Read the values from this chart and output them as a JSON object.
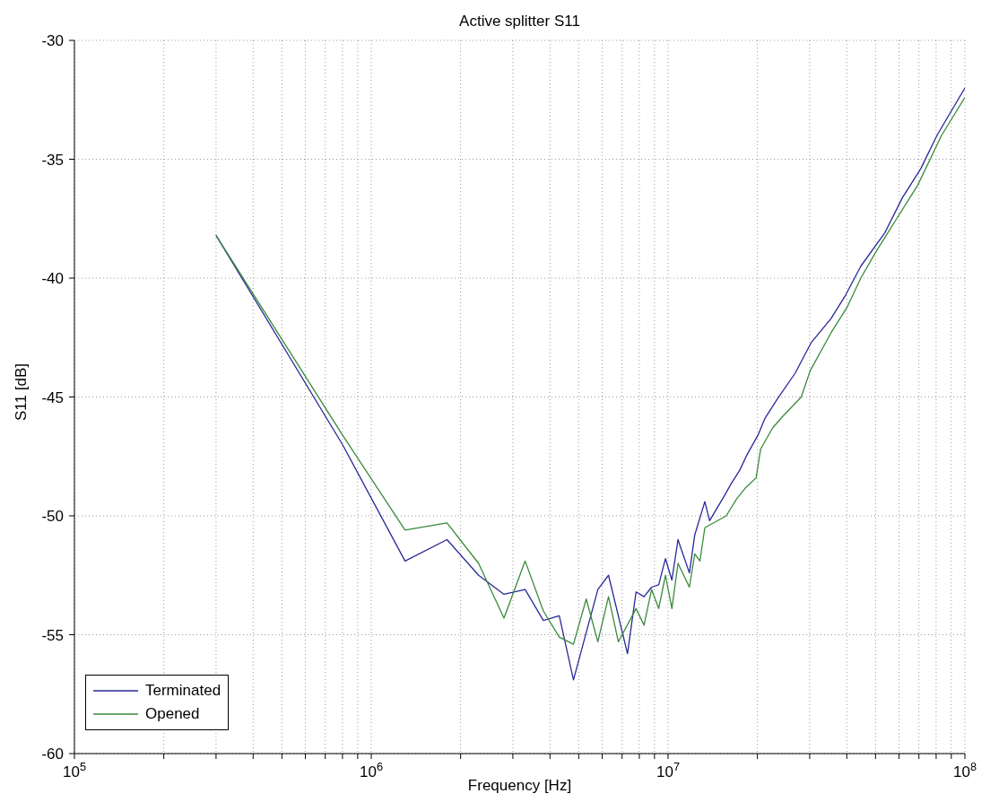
{
  "chart_data": {
    "type": "line",
    "title": "Active splitter S11",
    "xlabel": "Frequency [Hz]",
    "ylabel": "S11 [dB]",
    "log": "x",
    "grid": true,
    "legend": "bottom left",
    "line_style": "solid",
    "marker": "none",
    "xlim": [
      100000,
      100000000
    ],
    "xticks": [
      {
        "value": 100000,
        "label": "10$^{5}$"
      },
      {
        "value": 200000,
        "label": null
      },
      {
        "value": 300000,
        "label": null
      },
      {
        "value": 400000,
        "label": null
      },
      {
        "value": 500000,
        "label": null
      },
      {
        "value": 600000,
        "label": null
      },
      {
        "value": 700000,
        "label": null
      },
      {
        "value": 800000,
        "label": null
      },
      {
        "value": 900000,
        "label": null
      },
      {
        "value": 1000000,
        "label": "10$^{6}$"
      },
      {
        "value": 2000000,
        "label": null
      },
      {
        "value": 3000000,
        "label": null
      },
      {
        "value": 4000000,
        "label": null
      },
      {
        "value": 5000000,
        "label": null
      },
      {
        "value": 6000000,
        "label": null
      },
      {
        "value": 7000000,
        "label": null
      },
      {
        "value": 8000000,
        "label": null
      },
      {
        "value": 9000000,
        "label": null
      },
      {
        "value": 10000000,
        "label": "10$^{7}$"
      },
      {
        "value": 20000000,
        "label": null
      },
      {
        "value": 30000000,
        "label": null
      },
      {
        "value": 40000000,
        "label": null
      },
      {
        "value": 50000000,
        "label": null
      },
      {
        "value": 60000000,
        "label": null
      },
      {
        "value": 70000000,
        "label": null
      },
      {
        "value": 80000000,
        "label": null
      },
      {
        "value": 90000000,
        "label": null
      },
      {
        "value": 100000000,
        "label": "10$^{8}$"
      }
    ],
    "ylim": [
      -60,
      -30
    ],
    "yticks": [
      -60,
      -55,
      -50,
      -45,
      -40,
      -35,
      -30
    ],
    "series": [
      {
        "name": "Terminated",
        "color": "#28289a",
        "x": [
          300000,
          800000,
          1300000,
          1800000,
          2300000,
          2800000,
          3300000,
          3800000,
          4300000,
          4800000,
          5800000,
          6300000,
          7300000,
          7800000,
          8300000,
          8800000,
          9300000,
          9800000,
          10300000,
          10800000,
          11800000,
          12300000,
          13300000,
          13800000,
          15400000,
          16400000,
          17400000,
          18500000,
          20100000,
          21200000,
          23300000,
          26800000,
          30400000,
          35400000,
          39700000,
          44600000,
          53700000,
          61700000,
          71000000,
          80500000,
          100000000
        ],
        "values": [
          -38.2,
          -47.0,
          -51.9,
          -51.0,
          -52.5,
          -53.3,
          -53.1,
          -54.4,
          -54.2,
          -56.9,
          -53.1,
          -52.5,
          -55.8,
          -53.2,
          -53.4,
          -53.0,
          -52.9,
          -51.8,
          -52.7,
          -51.0,
          -52.4,
          -50.8,
          -49.4,
          -50.2,
          -49.2,
          -48.6,
          -48.1,
          -47.4,
          -46.6,
          -45.9,
          -45.1,
          -44.0,
          -42.7,
          -41.7,
          -40.7,
          -39.5,
          -38.1,
          -36.6,
          -35.4,
          -34.0,
          -32.0
        ]
      },
      {
        "name": "Opened",
        "color": "#3a8a3a",
        "x": [
          300000,
          800000,
          1300000,
          1800000,
          2300000,
          2800000,
          3300000,
          3800000,
          4300000,
          4800000,
          5300000,
          5800000,
          6300000,
          6800000,
          7800000,
          8300000,
          8800000,
          9300000,
          9800000,
          10300000,
          10800000,
          11800000,
          12300000,
          12800000,
          13300000,
          15700000,
          17000000,
          18300000,
          19800000,
          20500000,
          22500000,
          24400000,
          28100000,
          30100000,
          35400000,
          40200000,
          44600000,
          50100000,
          58900000,
          69300000,
          83400000,
          100000000
        ],
        "values": [
          -38.2,
          -46.6,
          -50.6,
          -50.3,
          -52.0,
          -54.3,
          -51.9,
          -54.0,
          -55.1,
          -55.4,
          -53.5,
          -55.3,
          -53.4,
          -55.3,
          -53.9,
          -54.6,
          -53.1,
          -53.9,
          -52.5,
          -53.9,
          -52.0,
          -53.0,
          -51.6,
          -51.9,
          -50.5,
          -50.0,
          -49.3,
          -48.8,
          -48.4,
          -47.2,
          -46.3,
          -45.8,
          -45.0,
          -43.9,
          -42.3,
          -41.2,
          -40.0,
          -38.9,
          -37.5,
          -36.1,
          -34.0,
          -32.4
        ]
      }
    ]
  }
}
